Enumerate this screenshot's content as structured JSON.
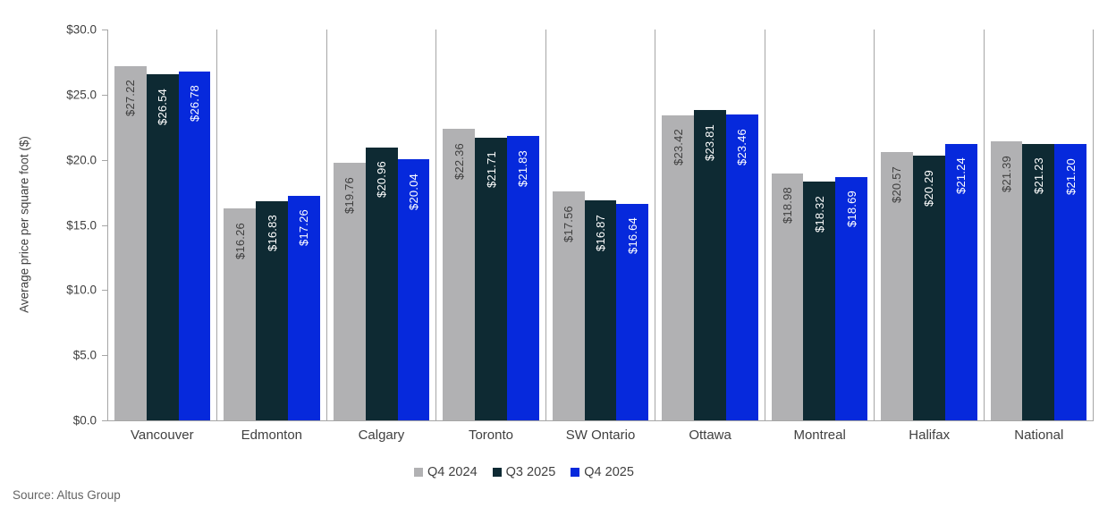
{
  "chart_data": {
    "type": "bar",
    "title": "",
    "xlabel": "",
    "ylabel": "Average price per square foot ($)",
    "ylim": [
      0,
      30
    ],
    "y_ticks": [
      "$30.0",
      "$25.0",
      "$20.0",
      "$15.0",
      "$10.0",
      "$5.0",
      "$0.0"
    ],
    "grid": "vertical category dividers only",
    "legend_position": "bottom-center",
    "value_label_format": "$0.00 rotated 90deg inside-end of bar",
    "categories": [
      "Vancouver",
      "Edmonton",
      "Calgary",
      "Toronto",
      "SW Ontario",
      "Ottawa",
      "Montreal",
      "Halifax",
      "National"
    ],
    "series": [
      {
        "name": "Q4 2024",
        "color": "#B1B1B3",
        "label_color": "#3F3F3F",
        "values": [
          27.22,
          16.26,
          19.76,
          22.36,
          17.56,
          23.42,
          18.98,
          20.57,
          21.39
        ]
      },
      {
        "name": "Q3 2025",
        "color": "#0E2A33",
        "label_color": "#FFFFFF",
        "values": [
          26.54,
          16.83,
          20.96,
          21.71,
          16.87,
          23.81,
          18.32,
          20.29,
          21.23
        ]
      },
      {
        "name": "Q4 2025",
        "color": "#0629DC",
        "label_color": "#FFFFFF",
        "values": [
          26.78,
          17.26,
          20.04,
          21.83,
          16.64,
          23.46,
          18.69,
          21.24,
          21.2
        ]
      }
    ]
  },
  "legend": {
    "items": [
      {
        "label": "Q4 2024",
        "color": "#B1B1B3"
      },
      {
        "label": "Q3 2025",
        "color": "#0E2A33"
      },
      {
        "label": "Q4 2025",
        "color": "#0629DC"
      }
    ]
  },
  "source": "Source: Altus Group",
  "style": {
    "axis_color": "#A6A6A6",
    "text_color": "#404040",
    "source_color": "#646464"
  }
}
